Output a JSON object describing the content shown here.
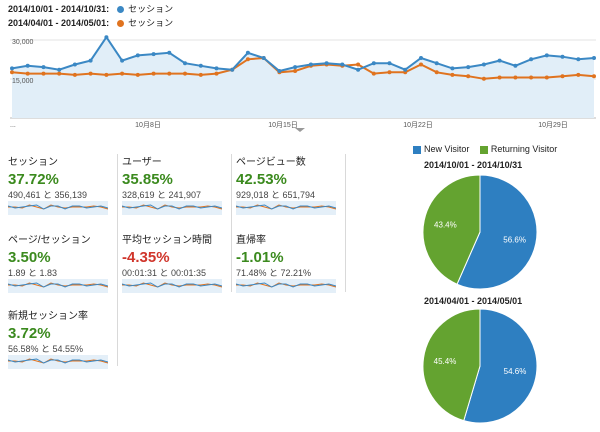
{
  "legend": {
    "range1": "2014/10/01 - 2014/10/31:",
    "range2": "2014/04/01 - 2014/05/01:",
    "series_name": "セッション"
  },
  "colors": {
    "blue": "#3b88c4",
    "orange": "#e0731f",
    "green": "#64a330",
    "pie_blue": "#2e7fc1",
    "pos": "#3b8a1e",
    "neg": "#d0352b"
  },
  "chart_data": {
    "type": "line",
    "series": [
      {
        "name": "セッション",
        "color": "#3b88c4",
        "values": [
          16000,
          17000,
          16500,
          15500,
          17500,
          19000,
          28000,
          19000,
          21000,
          21500,
          22000,
          18000,
          17000,
          16000,
          15500,
          22000,
          20000,
          15000,
          16500,
          17500,
          18000,
          17500,
          15500,
          18000,
          18000,
          15500,
          20000,
          18000,
          16000,
          16500,
          17500,
          19000,
          17000,
          19500,
          21000,
          20500,
          19500,
          20000
        ]
      },
      {
        "name": "セッション",
        "color": "#e0731f",
        "values": [
          14500,
          14000,
          14000,
          14000,
          13500,
          14000,
          13500,
          14000,
          13500,
          14000,
          14000,
          14000,
          13500,
          14000,
          15500,
          19500,
          20000,
          14500,
          15000,
          17000,
          17500,
          17000,
          17500,
          14000,
          14500,
          14500,
          17500,
          14500,
          13500,
          13000,
          12000,
          12500,
          12500,
          12500,
          12500,
          13000,
          13500,
          13000
        ]
      }
    ],
    "ytick_top": "30,000",
    "ytick_mid": "15,000",
    "xtick_labels": [
      "10月8日",
      "10月15日",
      "10月22日",
      "10月29日"
    ],
    "ellipsis": "..."
  },
  "metrics": [
    {
      "name": "セッション",
      "pct": "37.72%",
      "values": "490,461 と 356,139",
      "dir": "pos"
    },
    {
      "name": "ユーザー",
      "pct": "35.85%",
      "values": "328,619 と 241,907",
      "dir": "pos"
    },
    {
      "name": "ページビュー数",
      "pct": "42.53%",
      "values": "929,018 と 651,794",
      "dir": "pos"
    },
    {
      "name": "ページ/セッション",
      "pct": "3.50%",
      "values": "1.89 と 1.83",
      "dir": "pos"
    },
    {
      "name": "平均セッション時間",
      "pct": "-4.35%",
      "values": "00:01:31 と 00:01:35",
      "dir": "neg"
    },
    {
      "name": "直帰率",
      "pct": "-1.01%",
      "values": "71.48% と 72.21%",
      "dir": "pos"
    },
    {
      "name": "新規セッション率",
      "pct": "3.72%",
      "values": "56.58% と 54.55%",
      "dir": "pos"
    }
  ],
  "pie": {
    "legend_new": "New Visitor",
    "legend_returning": "Returning Visitor",
    "charts": [
      {
        "title": "2014/10/01 - 2014/10/31",
        "new_pct": 56.6,
        "ret_pct": 43.4,
        "new_label": "56.6%",
        "ret_label": "43.4%"
      },
      {
        "title": "2014/04/01 - 2014/05/01",
        "new_pct": 54.6,
        "ret_pct": 45.4,
        "new_label": "54.6%",
        "ret_label": "45.4%"
      }
    ]
  }
}
